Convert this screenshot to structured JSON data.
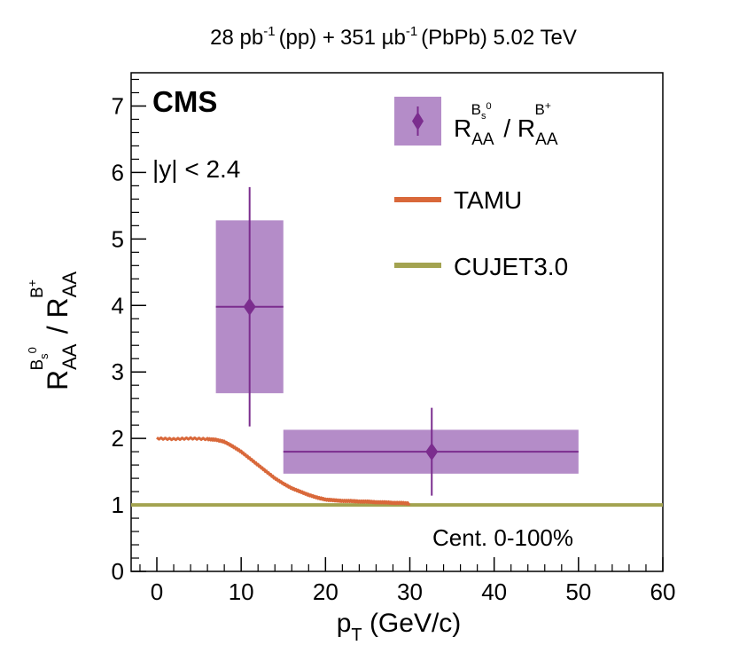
{
  "header": {
    "lumi_pp_value": "28 pb",
    "lumi_pp_exp": "-1",
    "lumi_pp_sys": "(pp) +",
    "lumi_pbpb_value": "351 µb",
    "lumi_pbpb_exp": "-1",
    "lumi_pbpb_rest": "(PbPb) 5.02 TeV"
  },
  "annotations": {
    "experiment": "CMS",
    "rapidity_cut": "|y| < 2.4",
    "centrality": "Cent. 0-100%"
  },
  "colors": {
    "data": "#7b2d8e",
    "data_box": "#b48cc8",
    "tamu": "#d9683a",
    "cujet": "#a3a350",
    "axis": "#000000"
  },
  "chart_data": {
    "type": "scatter",
    "xlabel": {
      "main": "p",
      "sub": "T",
      "rest": " (GeV/c)"
    },
    "ylabel": {
      "r": "R",
      "sub": "AA",
      "num_sup": "B",
      "num_sup_sub": "s",
      "num_sup_sup": "0",
      "slash": " / ",
      "den_sup": "B",
      "den_sup_sup": "+"
    },
    "xlim": [
      -3,
      60
    ],
    "ylim": [
      0,
      7.5
    ],
    "x_ticks": [
      0,
      10,
      20,
      30,
      40,
      50,
      60
    ],
    "x_tick_labels": [
      "0",
      "10",
      "20",
      "30",
      "40",
      "50",
      "60"
    ],
    "y_ticks": [
      0,
      1,
      2,
      3,
      4,
      5,
      6,
      7
    ],
    "y_tick_labels": [
      "0",
      "1",
      "2",
      "3",
      "4",
      "5",
      "6",
      "7"
    ],
    "grid": false,
    "legend_position": "top-right",
    "legend": [
      {
        "label": {
          "r": "R",
          "sub": "AA",
          "num_sup": "B",
          "num_sup_sub": "s",
          "num_sup_sup": "0",
          "slash": " / ",
          "den_sup": "B",
          "den_sup_sup": "+"
        },
        "style": "marker-box"
      },
      {
        "label": "TAMU",
        "style": "line-tamu"
      },
      {
        "label": "CUJET3.0",
        "style": "line-cujet"
      }
    ],
    "series": [
      {
        "kind": "data",
        "points": [
          {
            "x": 11.0,
            "y": 3.98,
            "x_low": 7,
            "x_high": 15,
            "y_stat": 1.8,
            "sys_low": 2.68,
            "sys_high": 5.28
          },
          {
            "x": 32.6,
            "y": 1.8,
            "x_low": 15,
            "x_high": 50,
            "y_stat": 0.66,
            "sys_low": 1.47,
            "sys_high": 2.13
          }
        ]
      },
      {
        "kind": "tamu",
        "x": [
          0,
          2,
          4,
          6,
          7,
          8,
          9,
          10,
          11,
          12,
          13,
          14,
          15,
          16,
          17,
          18,
          19,
          20,
          21,
          22,
          23,
          24,
          25,
          26,
          27,
          28,
          29,
          30
        ],
        "y": [
          2.0,
          1.99,
          2.0,
          1.99,
          1.98,
          1.95,
          1.88,
          1.8,
          1.7,
          1.6,
          1.5,
          1.4,
          1.32,
          1.25,
          1.2,
          1.15,
          1.11,
          1.08,
          1.07,
          1.06,
          1.06,
          1.05,
          1.05,
          1.04,
          1.04,
          1.03,
          1.03,
          1.02
        ]
      },
      {
        "kind": "cujet",
        "x": [
          -3,
          60
        ],
        "y": [
          1.0,
          1.0
        ]
      }
    ]
  }
}
